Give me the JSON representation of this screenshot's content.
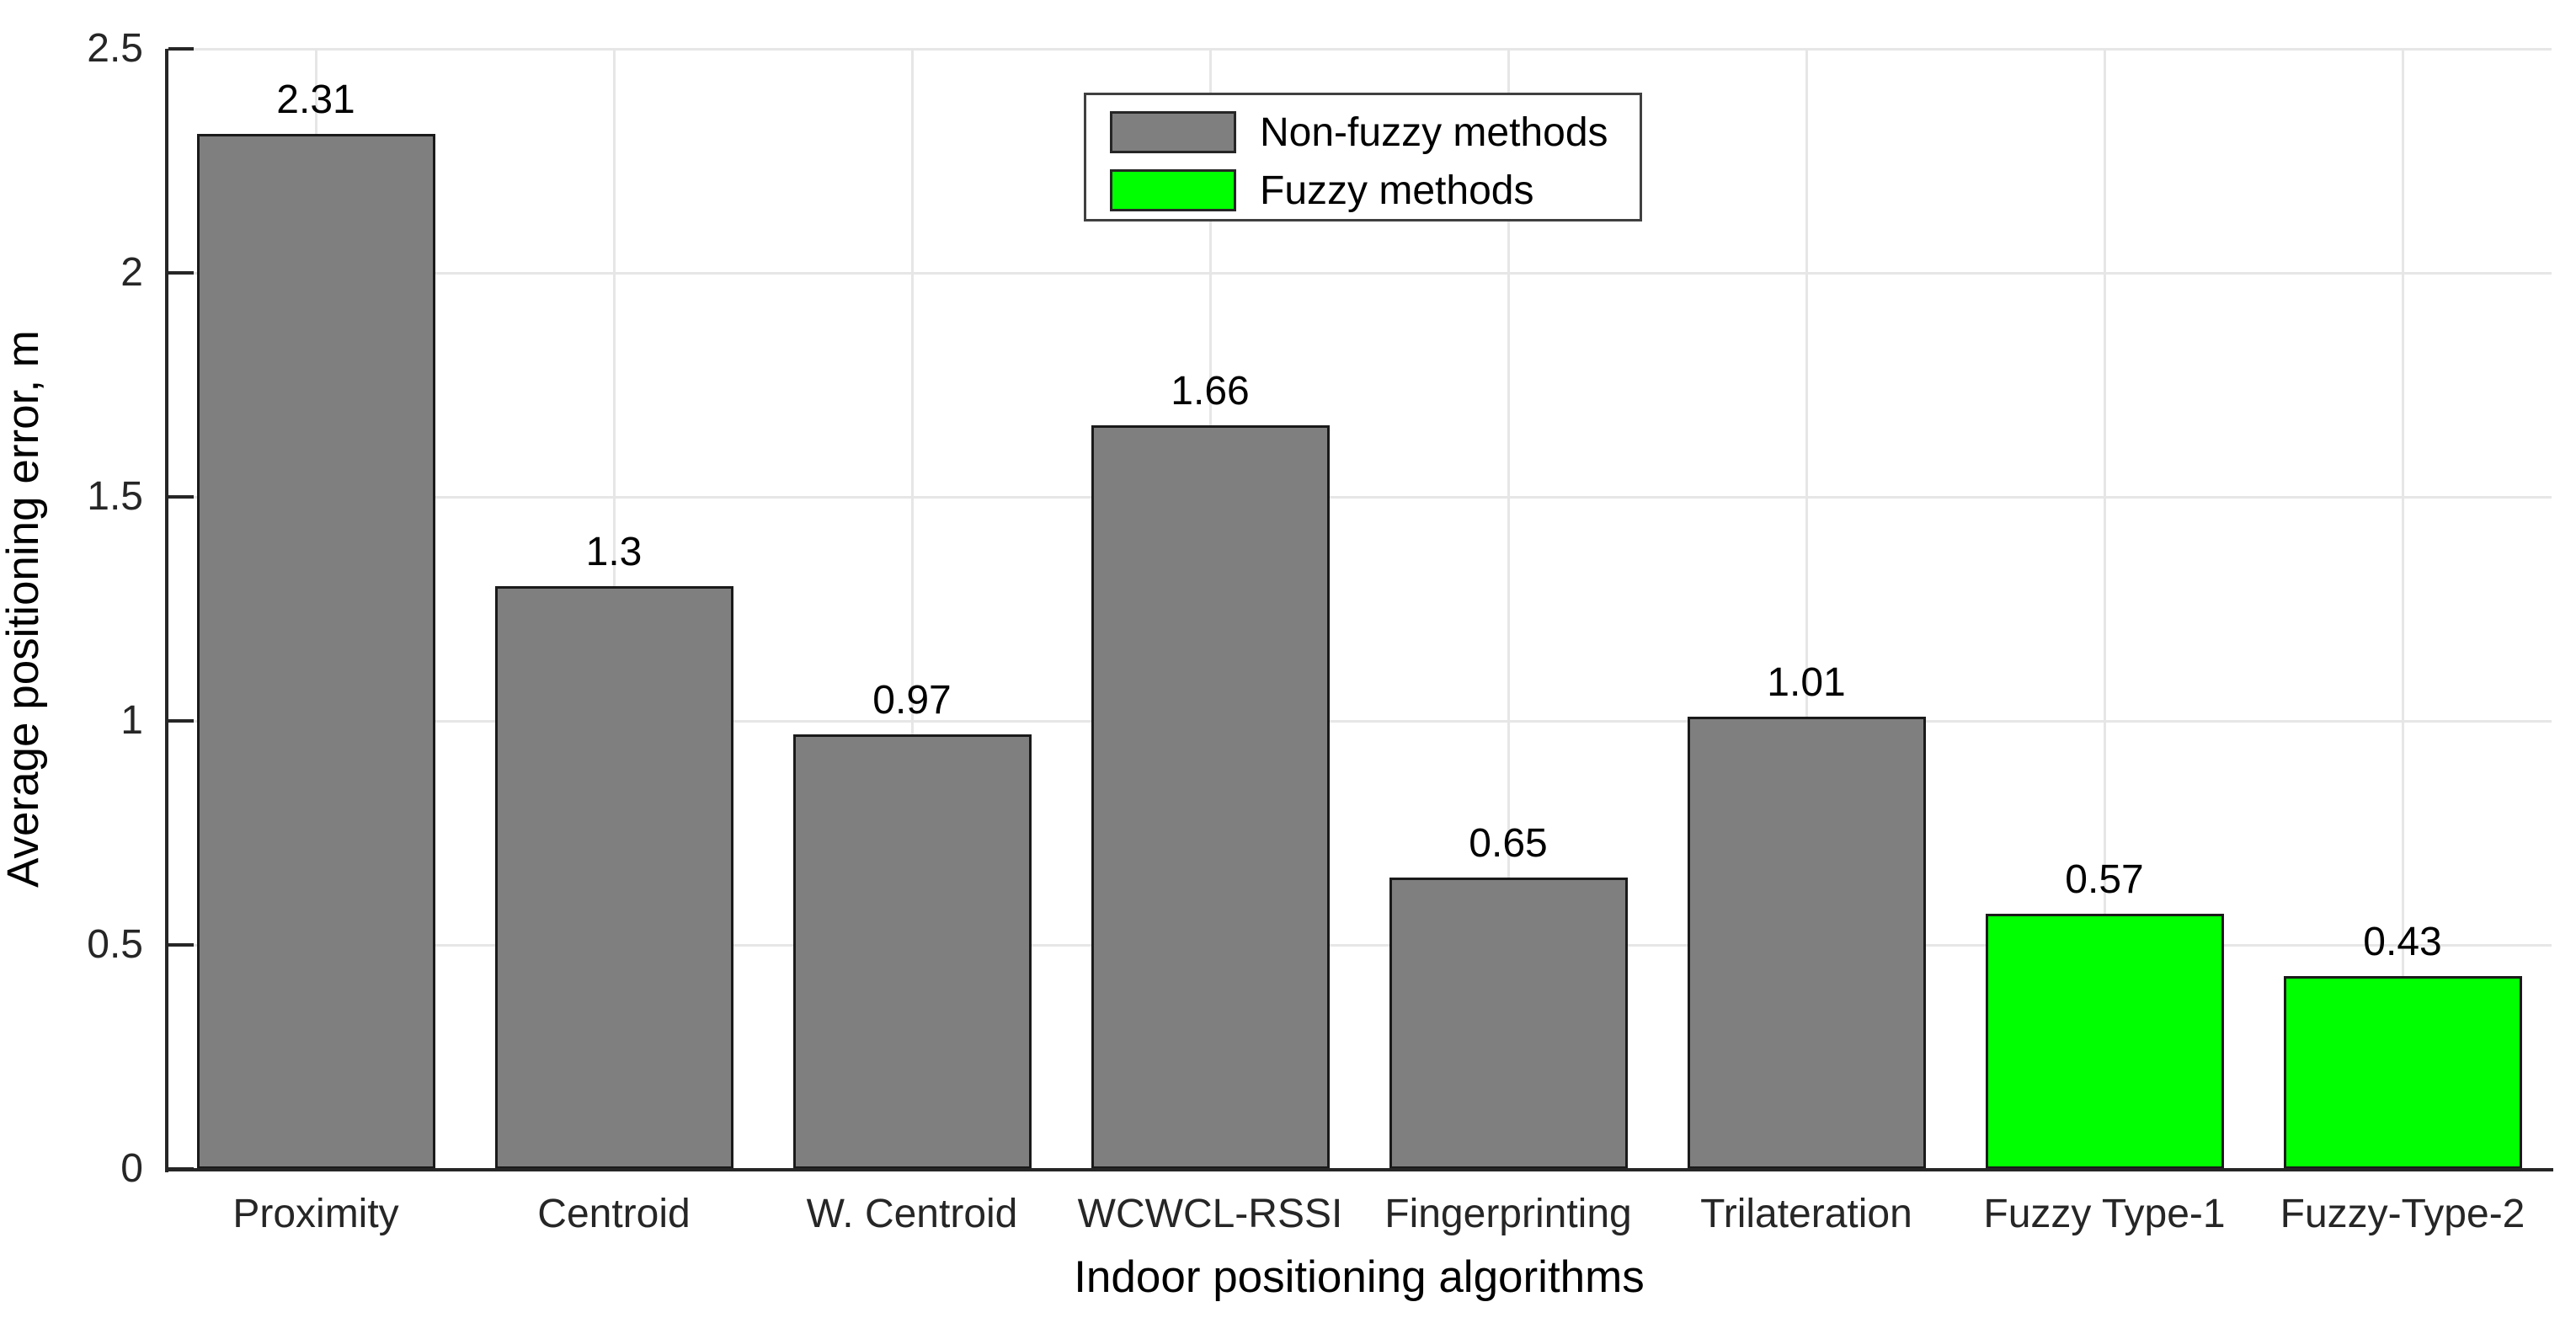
{
  "chart_data": {
    "type": "bar",
    "title": "",
    "xlabel": "Indoor positioning algorithms",
    "ylabel": "Average positioning error, m",
    "categories": [
      "Proximity",
      "Centroid",
      "W. Centroid",
      "WCWCL-RSSI",
      "Fingerprinting",
      "Trilateration",
      "Fuzzy Type-1",
      "Fuzzy-Type-2"
    ],
    "values": [
      2.31,
      1.3,
      0.97,
      1.66,
      0.65,
      1.01,
      0.57,
      0.43
    ],
    "value_labels": [
      "2.31",
      "1.3",
      "0.97",
      "1.66",
      "0.65",
      "1.01",
      "0.57",
      "0.43"
    ],
    "bar_colors": [
      "#7f7f7f",
      "#7f7f7f",
      "#7f7f7f",
      "#7f7f7f",
      "#7f7f7f",
      "#7f7f7f",
      "#00ff00",
      "#00ff00"
    ],
    "series": [
      {
        "name": "Non-fuzzy methods",
        "color": "#7f7f7f",
        "values": [
          2.31,
          1.3,
          0.97,
          1.66,
          0.65,
          1.01,
          null,
          null
        ]
      },
      {
        "name": "Fuzzy methods",
        "color": "#00ff00",
        "values": [
          null,
          null,
          null,
          null,
          null,
          null,
          0.57,
          0.43
        ]
      }
    ],
    "ylim": [
      0,
      2.5
    ],
    "yticks": [
      {
        "value": 0,
        "label": "0"
      },
      {
        "value": 0.5,
        "label": "0.5"
      },
      {
        "value": 1,
        "label": "1"
      },
      {
        "value": 1.5,
        "label": "1.5"
      },
      {
        "value": 2,
        "label": "2"
      },
      {
        "value": 2.5,
        "label": "2.5"
      }
    ],
    "grid": "on",
    "legend_position": "north",
    "legend_entries": [
      {
        "label": "Non-fuzzy methods",
        "color": "#7f7f7f"
      },
      {
        "label": "Fuzzy methods",
        "color": "#00ff00"
      }
    ],
    "style": {
      "bar_edge_color": "#1a1a1a",
      "axis_color": "#262626",
      "grid_color": "#e6e6e6",
      "background": "#ffffff"
    }
  }
}
